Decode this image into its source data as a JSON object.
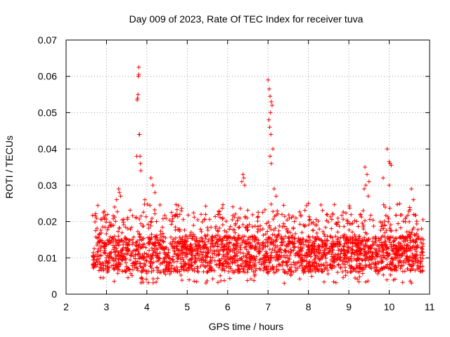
{
  "chart_data": {
    "type": "scatter",
    "title": "Day 009 of 2023, Rate Of TEC Index for receiver tuva",
    "xlabel": "GPS time / hours",
    "ylabel": "ROTI / TECUs",
    "xlim": [
      2,
      11
    ],
    "ylim": [
      0,
      0.07
    ],
    "xticks": [
      "2",
      "3",
      "4",
      "5",
      "6",
      "7",
      "8",
      "9",
      "10",
      "11"
    ],
    "yticks": [
      "0",
      "0.01",
      "0.02",
      "0.03",
      "0.04",
      "0.05",
      "0.06",
      "0.07"
    ],
    "grid": true,
    "marker": "+",
    "color": "#ff0000",
    "data_extent": {
      "x_start": 2.65,
      "x_end": 10.85,
      "baseline_min": 0.003,
      "baseline_max": 0.022
    },
    "series": [
      {
        "name": "ROTI",
        "points": [
          [
            3.75,
            0.038
          ],
          [
            3.76,
            0.0535
          ],
          [
            3.77,
            0.054
          ],
          [
            3.78,
            0.055
          ],
          [
            3.79,
            0.06
          ],
          [
            3.8,
            0.0625
          ],
          [
            3.8,
            0.0605
          ],
          [
            3.81,
            0.044
          ],
          [
            3.82,
            0.044
          ],
          [
            3.83,
            0.038
          ],
          [
            3.84,
            0.036
          ],
          [
            3.85,
            0.034
          ],
          [
            3.3,
            0.029
          ],
          [
            3.32,
            0.028
          ],
          [
            3.35,
            0.027
          ],
          [
            3.25,
            0.026
          ],
          [
            3.2,
            0.024
          ],
          [
            4.1,
            0.032
          ],
          [
            4.15,
            0.03
          ],
          [
            4.2,
            0.028
          ],
          [
            3.95,
            0.026
          ],
          [
            6.35,
            0.031
          ],
          [
            6.38,
            0.033
          ],
          [
            6.4,
            0.032
          ],
          [
            6.42,
            0.03
          ],
          [
            7.0,
            0.059
          ],
          [
            7.03,
            0.0565
          ],
          [
            7.05,
            0.0545
          ],
          [
            7.06,
            0.05
          ],
          [
            7.08,
            0.053
          ],
          [
            7.1,
            0.052
          ],
          [
            7.02,
            0.048
          ],
          [
            7.04,
            0.046
          ],
          [
            7.07,
            0.044
          ],
          [
            7.12,
            0.04
          ],
          [
            7.05,
            0.038
          ],
          [
            7.08,
            0.036
          ],
          [
            7.15,
            0.029
          ],
          [
            7.2,
            0.027
          ],
          [
            9.4,
            0.035
          ],
          [
            9.45,
            0.033
          ],
          [
            9.5,
            0.031
          ],
          [
            9.42,
            0.03
          ],
          [
            9.38,
            0.029
          ],
          [
            9.48,
            0.027
          ],
          [
            9.95,
            0.04
          ],
          [
            10.0,
            0.0365
          ],
          [
            10.02,
            0.036
          ],
          [
            10.05,
            0.0355
          ],
          [
            10.0,
            0.03
          ],
          [
            9.85,
            0.032
          ],
          [
            10.55,
            0.029
          ],
          [
            10.6,
            0.026
          ],
          [
            8.0,
            0.025
          ]
        ]
      }
    ]
  }
}
